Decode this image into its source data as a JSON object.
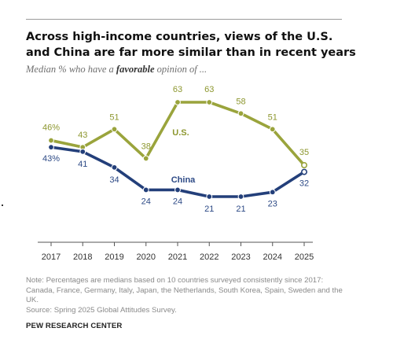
{
  "title": "Across high-income countries, views of the U.S. and China are far more similar than in recent years",
  "subtitle_parts": {
    "before": "Median % who have a ",
    "emphasis": "favorable",
    "after": " opinion of ..."
  },
  "note": "Note: Percentages are medians based on 10 countries surveyed consistently since 2017: Canada, France, Germany, Italy, Japan, the Netherlands, South Korea, Spain, Sweden and the UK.",
  "source": "Source: Spring 2025 Global Attitudes Survey.",
  "footer": "PEW RESEARCH CENTER",
  "colors": {
    "us": "#9aa43c",
    "china": "#233f7a",
    "text_us": "#8d972f",
    "text_china": "#2d4a86",
    "axis": "#555555"
  },
  "chart_data": {
    "type": "line",
    "x": [
      "2017",
      "2018",
      "2019",
      "2020",
      "2021",
      "2022",
      "2023",
      "2024",
      "2025"
    ],
    "ylim": [
      10,
      70
    ],
    "grid": false,
    "series": [
      {
        "name": "U.S.",
        "values": [
          46,
          43,
          51,
          38,
          63,
          63,
          58,
          51,
          35
        ],
        "labels": [
          "46%",
          "43",
          "51",
          "38",
          "63",
          "63",
          "58",
          "51",
          "35"
        ]
      },
      {
        "name": "China",
        "values": [
          43,
          41,
          34,
          24,
          24,
          21,
          21,
          23,
          32
        ],
        "labels": [
          "43%",
          "41",
          "34",
          "24",
          "24",
          "21",
          "21",
          "23",
          "32"
        ]
      }
    ]
  }
}
